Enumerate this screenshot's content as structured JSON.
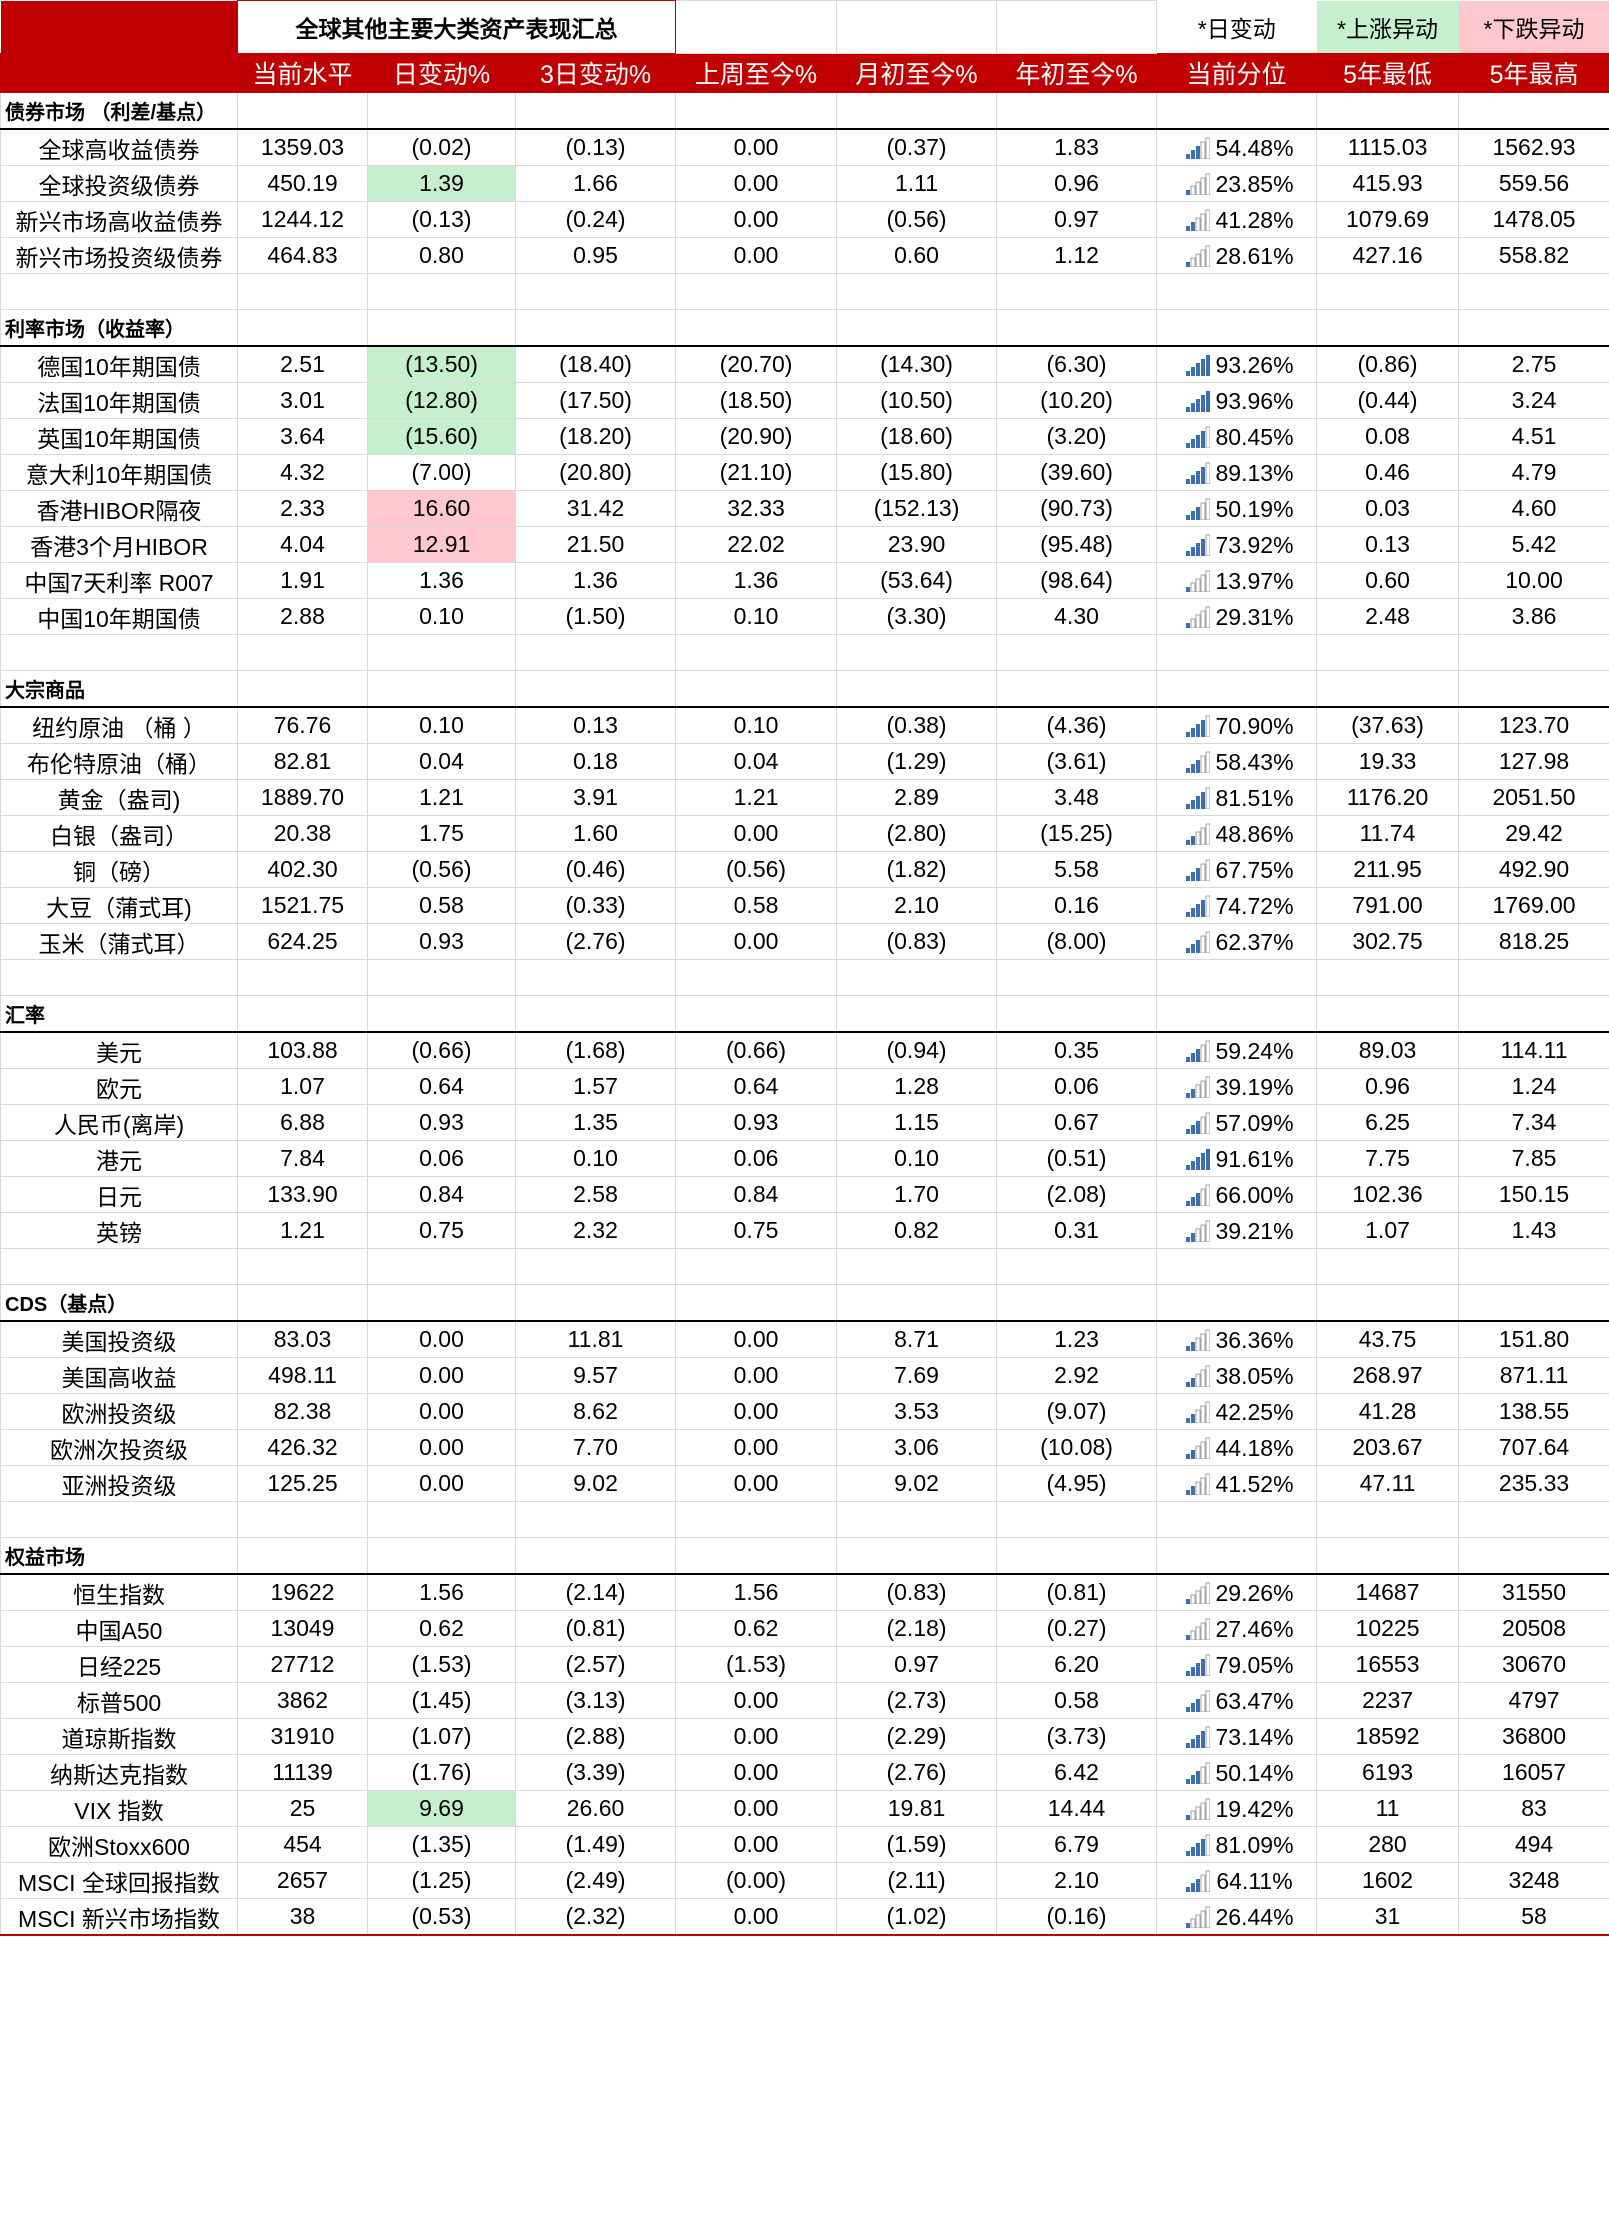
{
  "title": "全球其他主要大类资产表现汇总",
  "legend": {
    "day_change": "*日变动",
    "up_anomaly": "*上涨异动",
    "down_anomaly": "*下跌异动"
  },
  "columns": [
    "当前水平",
    "日变动%",
    "3日变动%",
    "上周至今%",
    "月初至今%",
    "年初至今%",
    "当前分位",
    "5年最低",
    "5年最高"
  ],
  "colors": {
    "header_red": "#c00000",
    "negative": "#e60000",
    "up_fill": "#c6efce",
    "down_fill": "#ffc7ce",
    "bar_blue": "#3c6fb0"
  },
  "sections": [
    {
      "title": "债券市场 （利差/基点）",
      "rows": [
        {
          "name": "全球高收益债券",
          "values": [
            "1359.03",
            "(0.02)",
            "(0.13)",
            "0.00",
            "(0.37)",
            "1.83",
            "54.48%",
            "1115.03",
            "1562.93"
          ],
          "percentile": 0.5448
        },
        {
          "name": "全球投资级债券",
          "values": [
            "450.19",
            "1.39",
            "1.66",
            "0.00",
            "1.11",
            "0.96",
            "23.85%",
            "415.93",
            "559.56"
          ],
          "percentile": 0.2385,
          "day_flag": "up"
        },
        {
          "name": "新兴市场高收益债券",
          "values": [
            "1244.12",
            "(0.13)",
            "(0.24)",
            "0.00",
            "(0.56)",
            "0.97",
            "41.28%",
            "1079.69",
            "1478.05"
          ],
          "percentile": 0.4128
        },
        {
          "name": "新兴市场投资级债券",
          "values": [
            "464.83",
            "0.80",
            "0.95",
            "0.00",
            "0.60",
            "1.12",
            "28.61%",
            "427.16",
            "558.82"
          ],
          "percentile": 0.2861
        }
      ]
    },
    {
      "title": "利率市场（收益率）",
      "rows": [
        {
          "name": "德国10年期国债",
          "values": [
            "2.51",
            "(13.50)",
            "(18.40)",
            "(20.70)",
            "(14.30)",
            "(6.30)",
            "93.26%",
            "(0.86)",
            "2.75"
          ],
          "percentile": 0.9326,
          "day_flag": "up"
        },
        {
          "name": "法国10年期国债",
          "values": [
            "3.01",
            "(12.80)",
            "(17.50)",
            "(18.50)",
            "(10.50)",
            "(10.20)",
            "93.96%",
            "(0.44)",
            "3.24"
          ],
          "percentile": 0.9396,
          "day_flag": "up"
        },
        {
          "name": "英国10年期国债",
          "values": [
            "3.64",
            "(15.60)",
            "(18.20)",
            "(20.90)",
            "(18.60)",
            "(3.20)",
            "80.45%",
            "0.08",
            "4.51"
          ],
          "percentile": 0.8045,
          "day_flag": "up"
        },
        {
          "name": "意大利10年期国债",
          "values": [
            "4.32",
            "(7.00)",
            "(20.80)",
            "(21.10)",
            "(15.80)",
            "(39.60)",
            "89.13%",
            "0.46",
            "4.79"
          ],
          "percentile": 0.8913
        },
        {
          "name": "香港HIBOR隔夜",
          "values": [
            "2.33",
            "16.60",
            "31.42",
            "32.33",
            "(152.13)",
            "(90.73)",
            "50.19%",
            "0.03",
            "4.60"
          ],
          "percentile": 0.5019,
          "day_flag": "down"
        },
        {
          "name": "香港3个月HIBOR",
          "values": [
            "4.04",
            "12.91",
            "21.50",
            "22.02",
            "23.90",
            "(95.48)",
            "73.92%",
            "0.13",
            "5.42"
          ],
          "percentile": 0.7392,
          "day_flag": "down"
        },
        {
          "name": "中国7天利率 R007",
          "values": [
            "1.91",
            "1.36",
            "1.36",
            "1.36",
            "(53.64)",
            "(98.64)",
            "13.97%",
            "0.60",
            "10.00"
          ],
          "percentile": 0.1397
        },
        {
          "name": "中国10年期国债",
          "values": [
            "2.88",
            "0.10",
            "(1.50)",
            "0.10",
            "(3.30)",
            "4.30",
            "29.31%",
            "2.48",
            "3.86"
          ],
          "percentile": 0.2931
        }
      ]
    },
    {
      "title": "大宗商品",
      "rows": [
        {
          "name": "纽约原油 （桶 ）",
          "values": [
            "76.76",
            "0.10",
            "0.13",
            "0.10",
            "(0.38)",
            "(4.36)",
            "70.90%",
            "(37.63)",
            "123.70"
          ],
          "percentile": 0.709
        },
        {
          "name": "布伦特原油（桶）",
          "values": [
            "82.81",
            "0.04",
            "0.18",
            "0.04",
            "(1.29)",
            "(3.61)",
            "58.43%",
            "19.33",
            "127.98"
          ],
          "percentile": 0.5843
        },
        {
          "name": "黄金（盎司)",
          "values": [
            "1889.70",
            "1.21",
            "3.91",
            "1.21",
            "2.89",
            "3.48",
            "81.51%",
            "1176.20",
            "2051.50"
          ],
          "percentile": 0.8151
        },
        {
          "name": "白银（盎司）",
          "values": [
            "20.38",
            "1.75",
            "1.60",
            "0.00",
            "(2.80)",
            "(15.25)",
            "48.86%",
            "11.74",
            "29.42"
          ],
          "percentile": 0.4886
        },
        {
          "name": "铜（磅）",
          "values": [
            "402.30",
            "(0.56)",
            "(0.46)",
            "(0.56)",
            "(1.82)",
            "5.58",
            "67.75%",
            "211.95",
            "492.90"
          ],
          "percentile": 0.6775
        },
        {
          "name": "大豆（蒲式耳)",
          "values": [
            "1521.75",
            "0.58",
            "(0.33)",
            "0.58",
            "2.10",
            "0.16",
            "74.72%",
            "791.00",
            "1769.00"
          ],
          "percentile": 0.7472
        },
        {
          "name": "玉米（蒲式耳）",
          "values": [
            "624.25",
            "0.93",
            "(2.76)",
            "0.00",
            "(0.83)",
            "(8.00)",
            "62.37%",
            "302.75",
            "818.25"
          ],
          "percentile": 0.6237
        }
      ]
    },
    {
      "title": "汇率",
      "rows": [
        {
          "name": "美元",
          "values": [
            "103.88",
            "(0.66)",
            "(1.68)",
            "(0.66)",
            "(0.94)",
            "0.35",
            "59.24%",
            "89.03",
            "114.11"
          ],
          "percentile": 0.5924
        },
        {
          "name": "欧元",
          "values": [
            "1.07",
            "0.64",
            "1.57",
            "0.64",
            "1.28",
            "0.06",
            "39.19%",
            "0.96",
            "1.24"
          ],
          "percentile": 0.3919
        },
        {
          "name": "人民币(离岸)",
          "values": [
            "6.88",
            "0.93",
            "1.35",
            "0.93",
            "1.15",
            "0.67",
            "57.09%",
            "6.25",
            "7.34"
          ],
          "percentile": 0.5709
        },
        {
          "name": "港元",
          "values": [
            "7.84",
            "0.06",
            "0.10",
            "0.06",
            "0.10",
            "(0.51)",
            "91.61%",
            "7.75",
            "7.85"
          ],
          "percentile": 0.9161
        },
        {
          "name": "日元",
          "values": [
            "133.90",
            "0.84",
            "2.58",
            "0.84",
            "1.70",
            "(2.08)",
            "66.00%",
            "102.36",
            "150.15"
          ],
          "percentile": 0.66
        },
        {
          "name": "英镑",
          "values": [
            "1.21",
            "0.75",
            "2.32",
            "0.75",
            "0.82",
            "0.31",
            "39.21%",
            "1.07",
            "1.43"
          ],
          "percentile": 0.3921
        }
      ]
    },
    {
      "title": "CDS（基点）",
      "rows": [
        {
          "name": "美国投资级",
          "values": [
            "83.03",
            "0.00",
            "11.81",
            "0.00",
            "8.71",
            "1.23",
            "36.36%",
            "43.75",
            "151.80"
          ],
          "percentile": 0.3636
        },
        {
          "name": "美国高收益",
          "values": [
            "498.11",
            "0.00",
            "9.57",
            "0.00",
            "7.69",
            "2.92",
            "38.05%",
            "268.97",
            "871.11"
          ],
          "percentile": 0.3805
        },
        {
          "name": "欧洲投资级",
          "values": [
            "82.38",
            "0.00",
            "8.62",
            "0.00",
            "3.53",
            "(9.07)",
            "42.25%",
            "41.28",
            "138.55"
          ],
          "percentile": 0.4225
        },
        {
          "name": "欧洲次投资级",
          "values": [
            "426.32",
            "0.00",
            "7.70",
            "0.00",
            "3.06",
            "(10.08)",
            "44.18%",
            "203.67",
            "707.64"
          ],
          "percentile": 0.4418
        },
        {
          "name": "亚洲投资级",
          "values": [
            "125.25",
            "0.00",
            "9.02",
            "0.00",
            "9.02",
            "(4.95)",
            "41.52%",
            "47.11",
            "235.33"
          ],
          "percentile": 0.4152
        }
      ]
    },
    {
      "title": "权益市场",
      "rows": [
        {
          "name": "恒生指数",
          "values": [
            "19622",
            "1.56",
            "(2.14)",
            "1.56",
            "(0.83)",
            "(0.81)",
            "29.26%",
            "14687",
            "31550"
          ],
          "percentile": 0.2926
        },
        {
          "name": "中国A50",
          "values": [
            "13049",
            "0.62",
            "(0.81)",
            "0.62",
            "(2.18)",
            "(0.27)",
            "27.46%",
            "10225",
            "20508"
          ],
          "percentile": 0.2746
        },
        {
          "name": "日经225",
          "values": [
            "27712",
            "(1.53)",
            "(2.57)",
            "(1.53)",
            "0.97",
            "6.20",
            "79.05%",
            "16553",
            "30670"
          ],
          "percentile": 0.7905
        },
        {
          "name": "标普500",
          "values": [
            "3862",
            "(1.45)",
            "(3.13)",
            "0.00",
            "(2.73)",
            "0.58",
            "63.47%",
            "2237",
            "4797"
          ],
          "percentile": 0.6347
        },
        {
          "name": "道琼斯指数",
          "values": [
            "31910",
            "(1.07)",
            "(2.88)",
            "0.00",
            "(2.29)",
            "(3.73)",
            "73.14%",
            "18592",
            "36800"
          ],
          "percentile": 0.7314
        },
        {
          "name": "纳斯达克指数",
          "values": [
            "11139",
            "(1.76)",
            "(3.39)",
            "0.00",
            "(2.76)",
            "6.42",
            "50.14%",
            "6193",
            "16057"
          ],
          "percentile": 0.5014
        },
        {
          "name": "VIX 指数",
          "values": [
            "25",
            "9.69",
            "26.60",
            "0.00",
            "19.81",
            "14.44",
            "19.42%",
            "11",
            "83"
          ],
          "percentile": 0.1942,
          "day_flag": "up"
        },
        {
          "name": "欧洲Stoxx600",
          "values": [
            "454",
            "(1.35)",
            "(1.49)",
            "0.00",
            "(1.59)",
            "6.79",
            "81.09%",
            "280",
            "494"
          ],
          "percentile": 0.8109
        },
        {
          "name": "MSCI 全球回报指数",
          "values": [
            "2657",
            "(1.25)",
            "(2.49)",
            "(0.00)",
            "(2.11)",
            "2.10",
            "64.11%",
            "1602",
            "3248"
          ],
          "percentile": 0.6411
        },
        {
          "name": "MSCI 新兴市场指数",
          "values": [
            "38",
            "(0.53)",
            "(2.32)",
            "0.00",
            "(1.02)",
            "(0.16)",
            "26.44%",
            "31",
            "58"
          ],
          "percentile": 0.2644
        }
      ]
    }
  ]
}
